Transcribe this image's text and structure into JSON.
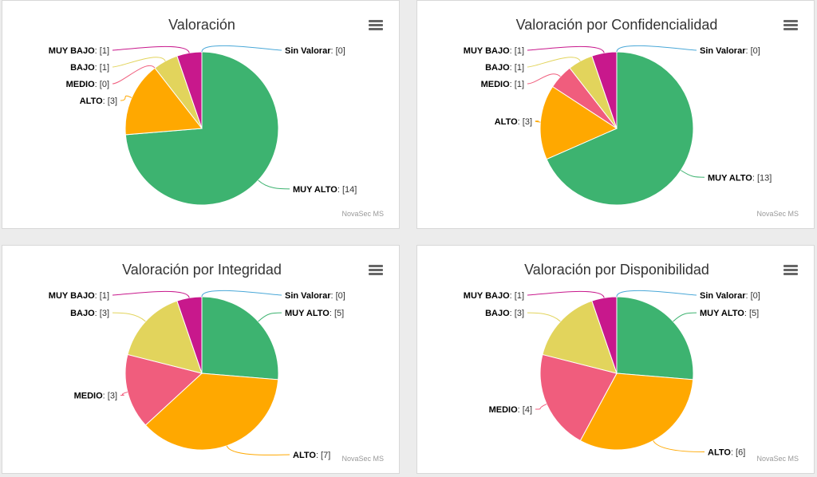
{
  "credit": "NovaSec MS",
  "chart_data": [
    {
      "type": "pie",
      "title": "Valoración",
      "slices": [
        {
          "label": "Sin Valorar",
          "value": 0,
          "color": "#4aa8d8"
        },
        {
          "label": "MUY ALTO",
          "value": 14,
          "color": "#3db370"
        },
        {
          "label": "ALTO",
          "value": 3,
          "color": "#ffa800"
        },
        {
          "label": "MEDIO",
          "value": 0,
          "color": "#f05d7d"
        },
        {
          "label": "BAJO",
          "value": 1,
          "color": "#e2d45c"
        },
        {
          "label": "MUY BAJO",
          "value": 1,
          "color": "#c8188c"
        }
      ]
    },
    {
      "type": "pie",
      "title": "Valoración por Confidencialidad",
      "slices": [
        {
          "label": "Sin Valorar",
          "value": 0,
          "color": "#4aa8d8"
        },
        {
          "label": "MUY ALTO",
          "value": 13,
          "color": "#3db370"
        },
        {
          "label": "ALTO",
          "value": 3,
          "color": "#ffa800"
        },
        {
          "label": "MEDIO",
          "value": 1,
          "color": "#f05d7d"
        },
        {
          "label": "BAJO",
          "value": 1,
          "color": "#e2d45c"
        },
        {
          "label": "MUY BAJO",
          "value": 1,
          "color": "#c8188c"
        }
      ]
    },
    {
      "type": "pie",
      "title": "Valoración por Integridad",
      "slices": [
        {
          "label": "Sin Valorar",
          "value": 0,
          "color": "#4aa8d8"
        },
        {
          "label": "MUY ALTO",
          "value": 5,
          "color": "#3db370"
        },
        {
          "label": "ALTO",
          "value": 7,
          "color": "#ffa800"
        },
        {
          "label": "MEDIO",
          "value": 3,
          "color": "#f05d7d"
        },
        {
          "label": "BAJO",
          "value": 3,
          "color": "#e2d45c"
        },
        {
          "label": "MUY BAJO",
          "value": 1,
          "color": "#c8188c"
        }
      ]
    },
    {
      "type": "pie",
      "title": "Valoración por Disponibilidad",
      "slices": [
        {
          "label": "Sin Valorar",
          "value": 0,
          "color": "#4aa8d8"
        },
        {
          "label": "MUY ALTO",
          "value": 5,
          "color": "#3db370"
        },
        {
          "label": "ALTO",
          "value": 6,
          "color": "#ffa800"
        },
        {
          "label": "MEDIO",
          "value": 4,
          "color": "#f05d7d"
        },
        {
          "label": "BAJO",
          "value": 3,
          "color": "#e2d45c"
        },
        {
          "label": "MUY BAJO",
          "value": 1,
          "color": "#c8188c"
        }
      ]
    }
  ]
}
